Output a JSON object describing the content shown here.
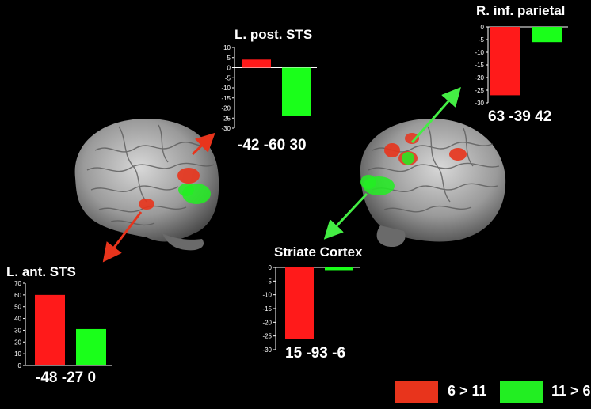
{
  "legend": {
    "items": [
      {
        "label": "6 > 11",
        "color": "#e8341c"
      },
      {
        "label": "11 > 6",
        "color": "#22ee22"
      }
    ]
  },
  "colors": {
    "red": "#ff1a1a",
    "green": "#1aff1a"
  },
  "chart_data": [
    {
      "type": "bar",
      "title": "L. post. STS",
      "coordinates": "-42 -60 30",
      "series": [
        {
          "name": "6 > 11",
          "values": [
            4
          ]
        },
        {
          "name": "11 > 6",
          "values": [
            -24
          ]
        }
      ],
      "ylim": [
        -30,
        10
      ],
      "yticks": [
        10,
        5,
        0,
        -5,
        -10,
        -15,
        -20,
        -25,
        -30
      ]
    },
    {
      "type": "bar",
      "title": "R. inf. parietal",
      "coordinates": "63 -39 42",
      "series": [
        {
          "name": "6 > 11",
          "values": [
            -27
          ]
        },
        {
          "name": "11 > 6",
          "values": [
            -6
          ]
        }
      ],
      "ylim": [
        -30,
        0
      ],
      "yticks": [
        0,
        -5,
        -10,
        -15,
        -20,
        -25,
        -30
      ]
    },
    {
      "type": "bar",
      "title": "L. ant. STS",
      "coordinates": "-48 -27 0",
      "series": [
        {
          "name": "6 > 11",
          "values": [
            60
          ]
        },
        {
          "name": "11 > 6",
          "values": [
            31
          ]
        }
      ],
      "ylim": [
        0,
        70
      ],
      "yticks": [
        70,
        60,
        50,
        40,
        30,
        20,
        10,
        0
      ]
    },
    {
      "type": "bar",
      "title": "Striate Cortex",
      "coordinates": "15 -93 -6",
      "series": [
        {
          "name": "6 > 11",
          "values": [
            -26
          ]
        },
        {
          "name": "11 > 6",
          "values": [
            -1
          ]
        }
      ],
      "ylim": [
        -30,
        0
      ],
      "yticks": [
        0,
        -5,
        -10,
        -15,
        -20,
        -25,
        -30
      ]
    }
  ]
}
